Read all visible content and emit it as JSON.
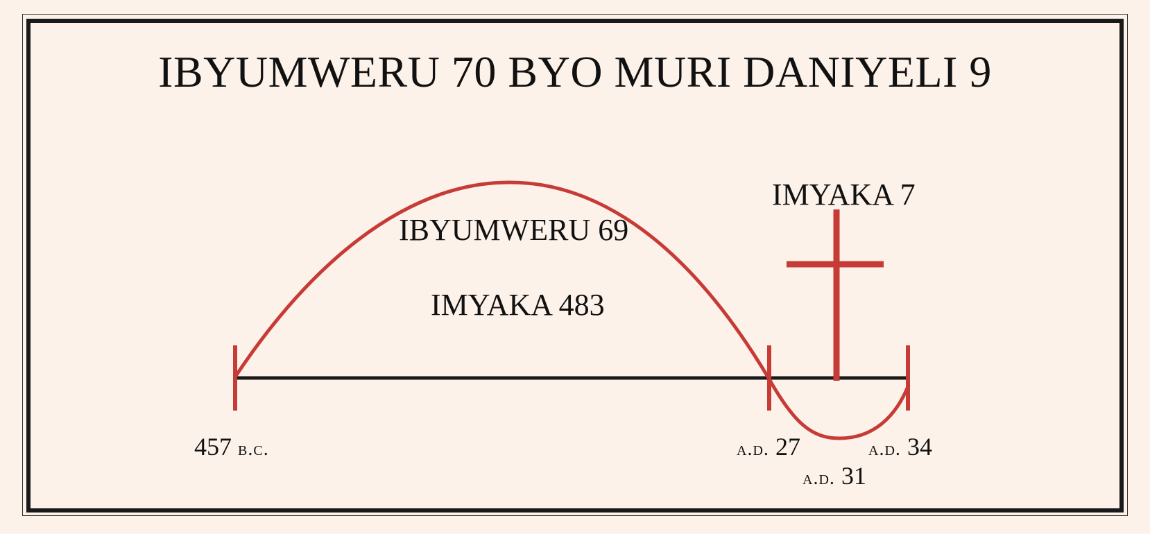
{
  "title": "IBYUMWERU 70 BYO MURI DANIYELI 9",
  "arc_labels": {
    "weeks": "IBYUMWERU 69",
    "years": "IMYAKA 483",
    "final_years": "IMYAKA 7"
  },
  "dates": {
    "start": {
      "number": "457",
      "era": "B.C."
    },
    "mid": {
      "era": "A.D.",
      "number": "27"
    },
    "cross": {
      "era": "A.D.",
      "number": "31"
    },
    "end": {
      "era": "A.D.",
      "number": "34"
    }
  },
  "colors": {
    "background": "#fdf2ea",
    "accent": "#c73b37",
    "line": "#1a1a1a"
  }
}
